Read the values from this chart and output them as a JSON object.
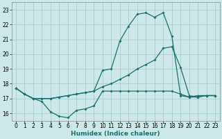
{
  "title": "",
  "xlabel": "Humidex (Indice chaleur)",
  "xlim": [
    -0.5,
    23.5
  ],
  "ylim": [
    15.5,
    23.5
  ],
  "yticks": [
    16,
    17,
    18,
    19,
    20,
    21,
    22,
    23
  ],
  "xticks": [
    0,
    1,
    2,
    3,
    4,
    5,
    6,
    7,
    8,
    9,
    10,
    11,
    12,
    13,
    14,
    15,
    16,
    17,
    18,
    19,
    20,
    21,
    22,
    23
  ],
  "bg_color": "#cde8e8",
  "grid_color": "#aacccc",
  "line_color": "#1a6e6e",
  "line1_x": [
    0,
    1,
    2,
    3,
    4,
    5,
    6,
    7,
    8,
    9,
    10,
    11,
    12,
    13,
    14,
    15,
    16,
    17,
    18,
    19,
    20,
    21,
    22,
    23
  ],
  "line1_y": [
    17.7,
    17.3,
    17.0,
    16.8,
    16.1,
    15.8,
    15.7,
    16.2,
    16.3,
    16.5,
    17.5,
    17.5,
    17.5,
    17.5,
    17.5,
    17.5,
    17.5,
    17.5,
    17.5,
    17.3,
    17.1,
    17.1,
    17.2,
    17.2
  ],
  "line2_x": [
    0,
    1,
    2,
    3,
    4,
    5,
    6,
    7,
    8,
    9,
    10,
    11,
    12,
    13,
    14,
    15,
    16,
    17,
    18,
    19,
    20,
    21,
    22,
    23
  ],
  "line2_y": [
    17.7,
    17.3,
    17.0,
    17.0,
    17.0,
    17.1,
    17.2,
    17.3,
    17.4,
    17.5,
    17.8,
    18.0,
    18.3,
    18.6,
    19.0,
    19.3,
    19.6,
    20.4,
    20.5,
    19.1,
    17.2,
    17.1,
    17.2,
    17.2
  ],
  "line3_x": [
    0,
    1,
    2,
    3,
    4,
    5,
    6,
    7,
    8,
    9,
    10,
    11,
    12,
    13,
    14,
    15,
    16,
    17,
    18,
    19,
    20,
    21,
    22,
    23
  ],
  "line3_y": [
    17.7,
    17.3,
    17.0,
    17.0,
    17.0,
    17.1,
    17.2,
    17.3,
    17.4,
    17.5,
    18.9,
    19.0,
    20.9,
    21.9,
    22.7,
    22.8,
    22.5,
    22.8,
    21.2,
    17.2,
    17.1,
    17.2,
    17.2,
    17.2
  ],
  "marker_size": 2.0,
  "tick_fontsize": 5.5,
  "xlabel_fontsize": 6.5,
  "xlabel_bold": true
}
